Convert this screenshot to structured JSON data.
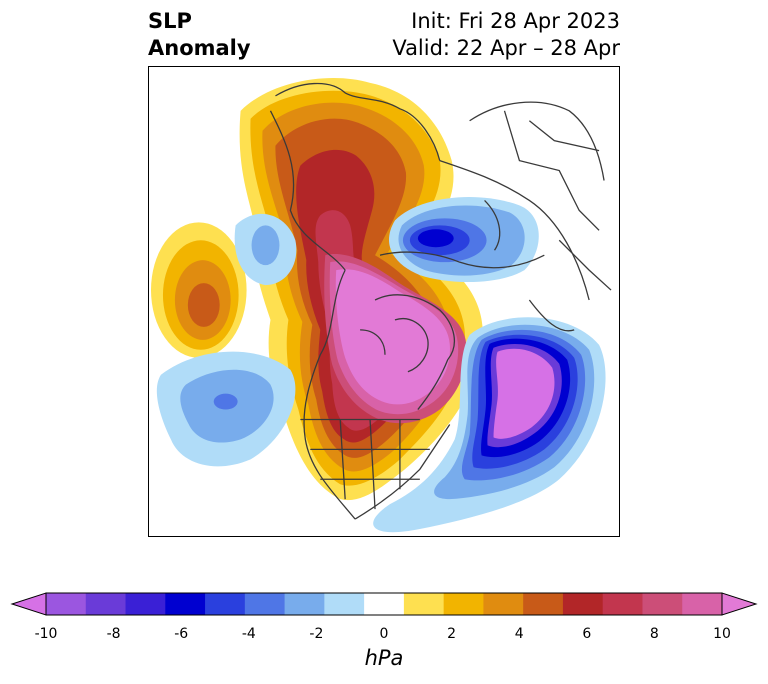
{
  "title": {
    "left_line1": "SLP",
    "left_line2": "Anomaly",
    "right_line1": "Init: Fri 28 Apr 2023",
    "right_line2": "Valid: 22 Apr – 28 Apr"
  },
  "map": {
    "projection": "north-polar-stereographic",
    "field": "sea level pressure anomaly",
    "features": [
      {
        "name": "arctic-high",
        "sign": "positive",
        "approx_max_hpa": 10
      },
      {
        "name": "alaska-yukon-high",
        "sign": "positive",
        "approx_max_hpa": 6
      },
      {
        "name": "north-pacific-high",
        "sign": "positive",
        "approx_max_hpa": 5
      },
      {
        "name": "central-siberia-low",
        "sign": "negative",
        "approx_min_hpa": -6
      },
      {
        "name": "north-atlantic-low",
        "sign": "negative",
        "approx_min_hpa": -10
      },
      {
        "name": "east-pacific-low",
        "sign": "negative",
        "approx_min_hpa": -3
      },
      {
        "name": "bering-low",
        "sign": "negative",
        "approx_min_hpa": -2
      }
    ]
  },
  "colorbar": {
    "unit": "hPa",
    "ticks": [
      "-10",
      "-8",
      "-6",
      "-4",
      "-2",
      "0",
      "2",
      "4",
      "6",
      "8",
      "10"
    ],
    "extend": "both",
    "colors": [
      "#d671e6",
      "#9b56e0",
      "#6a3bd8",
      "#3a20d6",
      "#0000d0",
      "#2a40de",
      "#4f76e6",
      "#78acec",
      "#b0dcf8",
      "#ffffff",
      "#fee050",
      "#f2b400",
      "#e08c10",
      "#c85a18",
      "#b22628",
      "#c2364e",
      "#cc4e78",
      "#d862a8",
      "#e27ad6"
    ]
  }
}
